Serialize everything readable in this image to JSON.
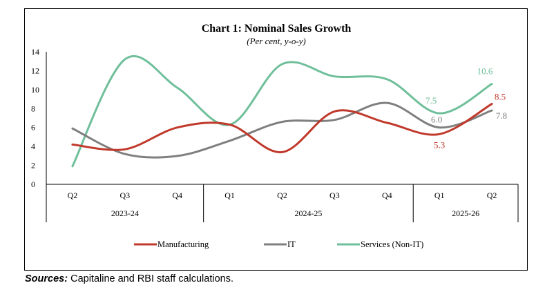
{
  "chart_data": {
    "type": "line",
    "title": "Chart 1: Nominal Sales Growth",
    "subtitle": "(Per cent, y-o-y)",
    "categories": [
      "Q2",
      "Q3",
      "Q4",
      "Q1",
      "Q2",
      "Q3",
      "Q4",
      "Q1",
      "Q2"
    ],
    "year_groups": [
      {
        "label": "2023-24",
        "count": 3
      },
      {
        "label": "2024-25",
        "count": 4
      },
      {
        "label": "2025-26",
        "count": 2
      }
    ],
    "ylim": [
      0,
      14
    ],
    "yticks": [
      "0",
      "2",
      "4",
      "6",
      "8",
      "10",
      "12",
      "14"
    ],
    "series": [
      {
        "name": "Manufacturing",
        "color": "#c0392b",
        "values": [
          4.2,
          3.7,
          6.0,
          6.3,
          3.4,
          7.7,
          6.5,
          5.3,
          8.5
        ]
      },
      {
        "name": "IT",
        "color": "#7f7f7f",
        "values": [
          5.9,
          3.2,
          3.0,
          4.6,
          6.6,
          6.8,
          8.6,
          6.0,
          7.8
        ]
      },
      {
        "name": "Services (Non-IT)",
        "color": "#6fbf9a",
        "values": [
          1.9,
          13.2,
          10.2,
          6.3,
          12.7,
          11.4,
          11.1,
          7.5,
          10.6
        ]
      }
    ],
    "data_labels": [
      {
        "series": 0,
        "index": 7,
        "text": "5.3"
      },
      {
        "series": 0,
        "index": 8,
        "text": "8.5"
      },
      {
        "series": 1,
        "index": 7,
        "text": "6.0"
      },
      {
        "series": 1,
        "index": 8,
        "text": "7.8"
      },
      {
        "series": 2,
        "index": 7,
        "text": "7.5"
      },
      {
        "series": 2,
        "index": 8,
        "text": "10.6"
      }
    ],
    "legend_position": "bottom"
  },
  "sources": {
    "label": "Sources:",
    "text": "Capitaline and RBI staff calculations."
  }
}
